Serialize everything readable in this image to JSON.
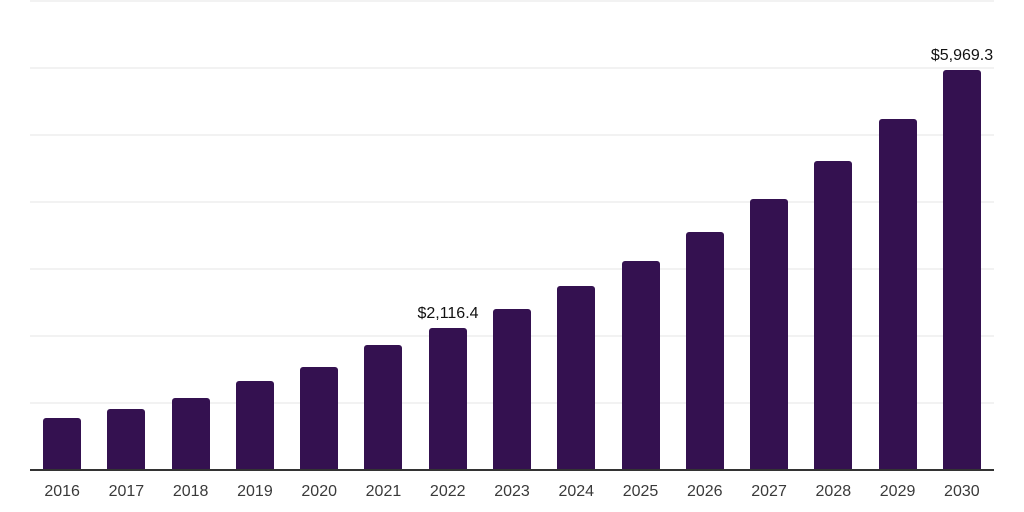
{
  "chart_data": {
    "type": "bar",
    "title": "",
    "categories": [
      "2016",
      "2017",
      "2018",
      "2019",
      "2020",
      "2021",
      "2022",
      "2023",
      "2024",
      "2025",
      "2026",
      "2027",
      "2028",
      "2029",
      "2030"
    ],
    "values": [
      770,
      910,
      1075,
      1330,
      1535,
      1870,
      2116.4,
      2410,
      2745,
      3125,
      3555,
      4045,
      4605,
      5245,
      5969.3
    ],
    "data_labels": [
      {
        "category": "2022",
        "text": "$2,116.4"
      },
      {
        "category": "2030",
        "text": "$5,969.3"
      }
    ],
    "xlabel": "",
    "ylabel": "",
    "ylim": [
      0,
      7000
    ],
    "gridline_interval": 1000,
    "y_axis_tick_labels_visible": false,
    "legend": "none",
    "grid": true,
    "colors": {
      "bar": "#341150",
      "gridline": "#f2f2f2",
      "axis": "#333333",
      "data_label": "#111111",
      "tick_label": "#3a3a3a",
      "background": "#ffffff"
    }
  }
}
